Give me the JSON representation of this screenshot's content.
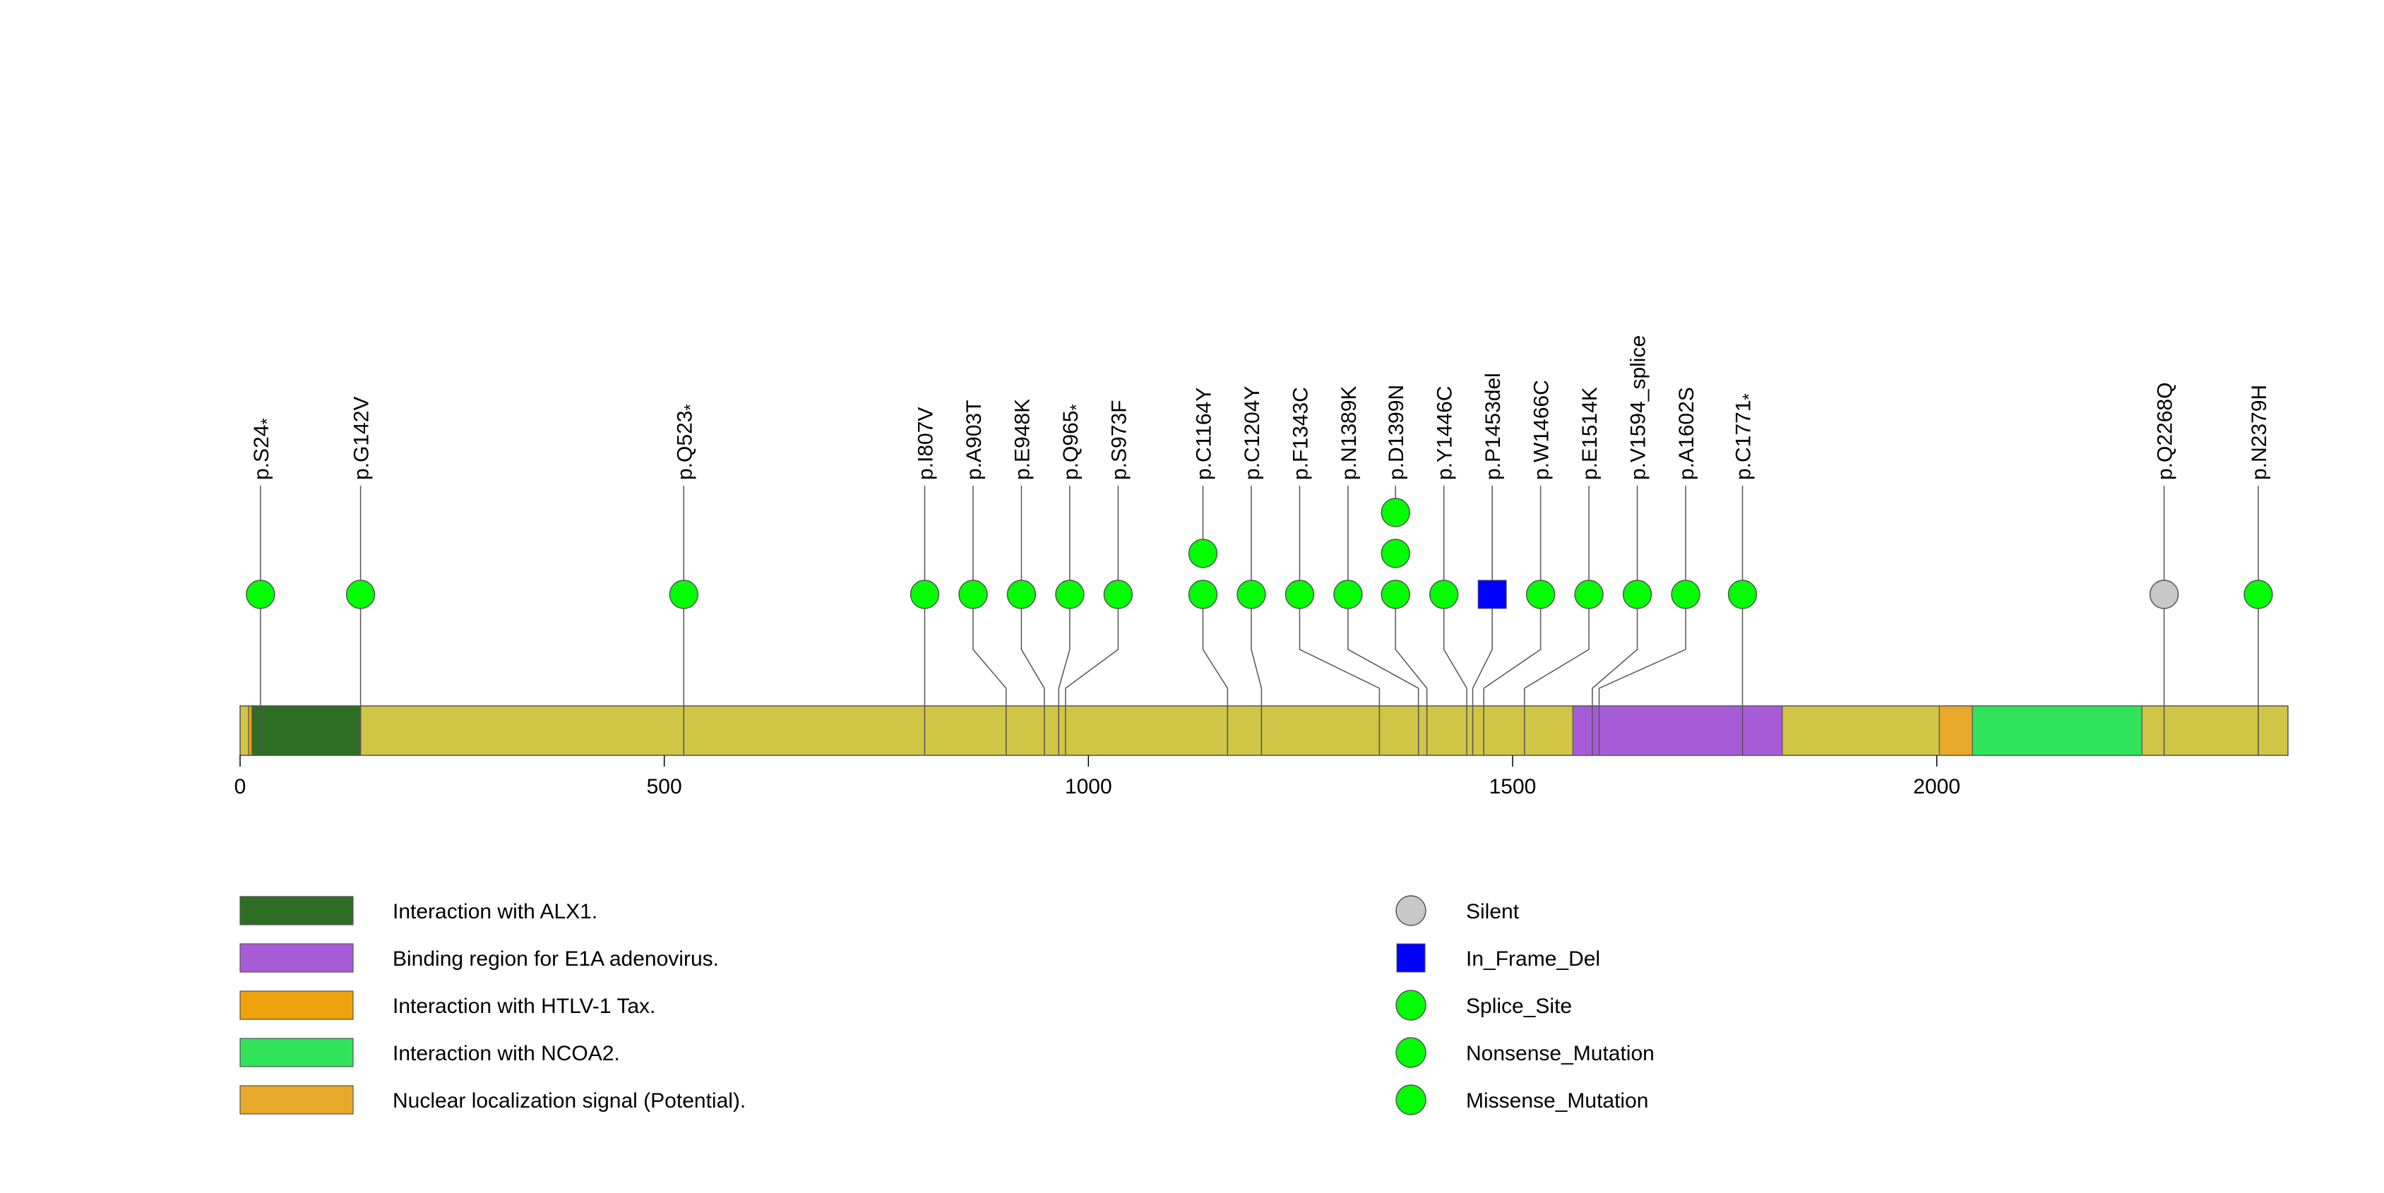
{
  "protein": {
    "length": 2414
  },
  "axis": {
    "ticks": [
      0,
      500,
      1000,
      1500,
      2000
    ]
  },
  "domains": [
    {
      "name": "Interaction with ALX1.",
      "start": 10,
      "end": 141,
      "color": "#2e6e24"
    },
    {
      "name": "Interaction with HTLV-1 Tax.",
      "start": 10,
      "end": 14,
      "color": "#efa20c"
    },
    {
      "name": "Binding region for E1A adenovirus.",
      "start": 1571,
      "end": 1818,
      "color": "#a75bd7"
    },
    {
      "name": "Nuclear localization signal (Potential).",
      "start": 2003,
      "end": 2042,
      "color": "#e8a82a"
    },
    {
      "name": "Interaction with NCOA2.",
      "start": 2042,
      "end": 2242,
      "color": "#30e35a"
    }
  ],
  "backbone_color": "#d0c546",
  "mutations": [
    {
      "label": "p.S24",
      "star": true,
      "pos": 24,
      "lanepos": 24,
      "count": 1,
      "type": "Nonsense_Mutation"
    },
    {
      "label": "p.G142V",
      "star": false,
      "pos": 142,
      "lanepos": 142,
      "count": 1,
      "type": "Missense_Mutation"
    },
    {
      "label": "p.Q523",
      "star": true,
      "pos": 523,
      "lanepos": 523,
      "count": 1,
      "type": "Nonsense_Mutation"
    },
    {
      "label": "p.I807V",
      "star": false,
      "pos": 807,
      "lanepos": 807,
      "count": 1,
      "type": "Missense_Mutation"
    },
    {
      "label": "p.A903T",
      "star": false,
      "pos": 903,
      "lanepos": 864,
      "count": 1,
      "type": "Missense_Mutation"
    },
    {
      "label": "p.E948K",
      "star": false,
      "pos": 948,
      "lanepos": 921,
      "count": 1,
      "type": "Missense_Mutation"
    },
    {
      "label": "p.Q965",
      "star": true,
      "pos": 965,
      "lanepos": 978,
      "count": 1,
      "type": "Nonsense_Mutation"
    },
    {
      "label": "p.S973F",
      "star": false,
      "pos": 973,
      "lanepos": 1035,
      "count": 1,
      "type": "Missense_Mutation"
    },
    {
      "label": "p.C1164Y",
      "star": false,
      "pos": 1164,
      "lanepos": 1135,
      "count": 2,
      "type": "Missense_Mutation"
    },
    {
      "label": "p.C1204Y",
      "star": false,
      "pos": 1204,
      "lanepos": 1192,
      "count": 1,
      "type": "Missense_Mutation"
    },
    {
      "label": "p.F1343C",
      "star": false,
      "pos": 1343,
      "lanepos": 1249,
      "count": 1,
      "type": "Missense_Mutation"
    },
    {
      "label": "p.N1389K",
      "star": false,
      "pos": 1389,
      "lanepos": 1306,
      "count": 1,
      "type": "Missense_Mutation"
    },
    {
      "label": "p.D1399N",
      "star": false,
      "pos": 1399,
      "lanepos": 1362,
      "count": 3,
      "type": "Missense_Mutation"
    },
    {
      "label": "p.Y1446C",
      "star": false,
      "pos": 1446,
      "lanepos": 1419,
      "count": 1,
      "type": "Missense_Mutation"
    },
    {
      "label": "p.P1453del",
      "star": false,
      "pos": 1453,
      "lanepos": 1476,
      "count": 1,
      "type": "In_Frame_Del"
    },
    {
      "label": "p.W1466C",
      "star": false,
      "pos": 1466,
      "lanepos": 1533,
      "count": 1,
      "type": "Missense_Mutation"
    },
    {
      "label": "p.E1514K",
      "star": false,
      "pos": 1514,
      "lanepos": 1590,
      "count": 1,
      "type": "Missense_Mutation"
    },
    {
      "label": "p.V1594_splice",
      "star": false,
      "pos": 1594,
      "lanepos": 1647,
      "count": 1,
      "type": "Splice_Site"
    },
    {
      "label": "p.A1602S",
      "star": false,
      "pos": 1602,
      "lanepos": 1704,
      "count": 1,
      "type": "Missense_Mutation"
    },
    {
      "label": "p.C1771",
      "star": true,
      "pos": 1771,
      "lanepos": 1771,
      "count": 1,
      "type": "Nonsense_Mutation"
    },
    {
      "label": "p.Q2268Q",
      "star": false,
      "pos": 2268,
      "lanepos": 2268,
      "count": 1,
      "type": "Silent"
    },
    {
      "label": "p.N2379H",
      "star": false,
      "pos": 2379,
      "lanepos": 2379,
      "count": 1,
      "type": "Missense_Mutation"
    }
  ],
  "legend_domains": [
    {
      "name": "Interaction with ALX1.",
      "color": "#2e6e24"
    },
    {
      "name": "Binding region for E1A adenovirus.",
      "color": "#a75bd7"
    },
    {
      "name": "Interaction with HTLV-1 Tax.",
      "color": "#efa20c"
    },
    {
      "name": "Interaction with NCOA2.",
      "color": "#30e35a"
    },
    {
      "name": "Nuclear localization signal (Potential).",
      "color": "#e8a82a"
    }
  ],
  "legend_mutations": [
    {
      "name": "Silent",
      "shape": "circle",
      "color": "#c8c8c8"
    },
    {
      "name": "In_Frame_Del",
      "shape": "square",
      "color": "#0000ff"
    },
    {
      "name": "Splice_Site",
      "shape": "circle",
      "color": "#00ff00"
    },
    {
      "name": "Nonsense_Mutation",
      "shape": "circle",
      "color": "#00ff00"
    },
    {
      "name": "Missense_Mutation",
      "shape": "circle",
      "color": "#00ff00"
    }
  ],
  "type_colors": {
    "Silent": "#c8c8c8",
    "In_Frame_Del": "#0000ff",
    "Splice_Site": "#00ff00",
    "Nonsense_Mutation": "#00ff00",
    "Missense_Mutation": "#00ff00"
  }
}
